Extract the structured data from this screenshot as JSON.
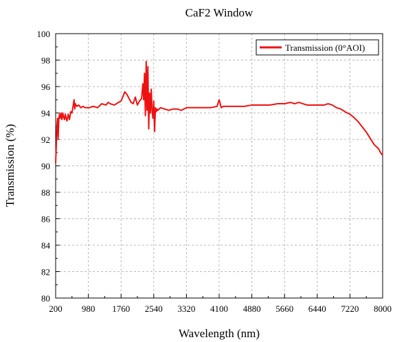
{
  "chart_data": {
    "type": "line",
    "title": "CaF2 Window",
    "xlabel": "Wavelength (nm)",
    "ylabel": "Transmission (%)",
    "xlim": [
      200,
      8000
    ],
    "ylim": [
      80,
      100
    ],
    "xticks": [
      200,
      980,
      1760,
      2540,
      3320,
      4100,
      4880,
      5660,
      6440,
      7220,
      8000
    ],
    "yticks": [
      80,
      82,
      84,
      86,
      88,
      90,
      92,
      94,
      96,
      98,
      100
    ],
    "grid": true,
    "legend_position": "top-right",
    "series": [
      {
        "name": "Transmission (0°AOI)",
        "color": "#ee1111",
        "x": [
          200,
          215,
          230,
          245,
          260,
          275,
          290,
          310,
          330,
          350,
          370,
          390,
          410,
          430,
          450,
          470,
          500,
          530,
          560,
          590,
          620,
          640,
          655,
          670,
          700,
          750,
          800,
          850,
          900,
          950,
          1000,
          1100,
          1200,
          1300,
          1400,
          1450,
          1500,
          1600,
          1700,
          1760,
          1800,
          1850,
          1900,
          1950,
          2000,
          2050,
          2100,
          2150,
          2200,
          2250,
          2280,
          2300,
          2320,
          2340,
          2360,
          2380,
          2400,
          2420,
          2440,
          2460,
          2480,
          2500,
          2520,
          2540,
          2560,
          2580,
          2600,
          2620,
          2640,
          2700,
          2800,
          2900,
          3000,
          3100,
          3200,
          3320,
          3500,
          3700,
          3900,
          4050,
          4100,
          4150,
          4200,
          4300,
          4500,
          4700,
          4880,
          5100,
          5300,
          5500,
          5660,
          5800,
          5900,
          6000,
          6100,
          6200,
          6300,
          6440,
          6600,
          6700,
          6800,
          6900,
          7000,
          7100,
          7220,
          7300,
          7400,
          7500,
          7600,
          7700,
          7800,
          7900,
          7950,
          8000
        ],
        "values": [
          90.2,
          91.5,
          93.0,
          93.6,
          92.1,
          93.5,
          93.9,
          93.6,
          94.0,
          93.5,
          94.0,
          93.7,
          93.5,
          93.9,
          93.6,
          93.4,
          93.9,
          93.5,
          94.1,
          94.0,
          94.6,
          95.0,
          94.3,
          94.7,
          94.5,
          94.6,
          94.4,
          94.5,
          94.4,
          94.4,
          94.4,
          94.5,
          94.4,
          94.7,
          94.6,
          94.8,
          94.7,
          94.6,
          94.8,
          94.9,
          95.2,
          95.6,
          95.4,
          95.1,
          94.8,
          94.7,
          95.2,
          94.6,
          94.9,
          95.1,
          96.2,
          95.0,
          97.0,
          93.8,
          97.9,
          94.2,
          97.5,
          92.8,
          95.5,
          94.0,
          95.8,
          94.2,
          93.6,
          94.9,
          92.6,
          94.4,
          94.1,
          94.3,
          94.2,
          94.4,
          94.3,
          94.2,
          94.3,
          94.3,
          94.2,
          94.4,
          94.4,
          94.4,
          94.4,
          94.5,
          95.0,
          94.4,
          94.5,
          94.5,
          94.5,
          94.5,
          94.6,
          94.6,
          94.6,
          94.7,
          94.7,
          94.8,
          94.7,
          94.8,
          94.7,
          94.6,
          94.6,
          94.6,
          94.6,
          94.7,
          94.6,
          94.4,
          94.3,
          94.1,
          93.9,
          93.7,
          93.4,
          93.0,
          92.6,
          92.1,
          91.6,
          91.3,
          91.0,
          90.8
        ]
      }
    ]
  }
}
